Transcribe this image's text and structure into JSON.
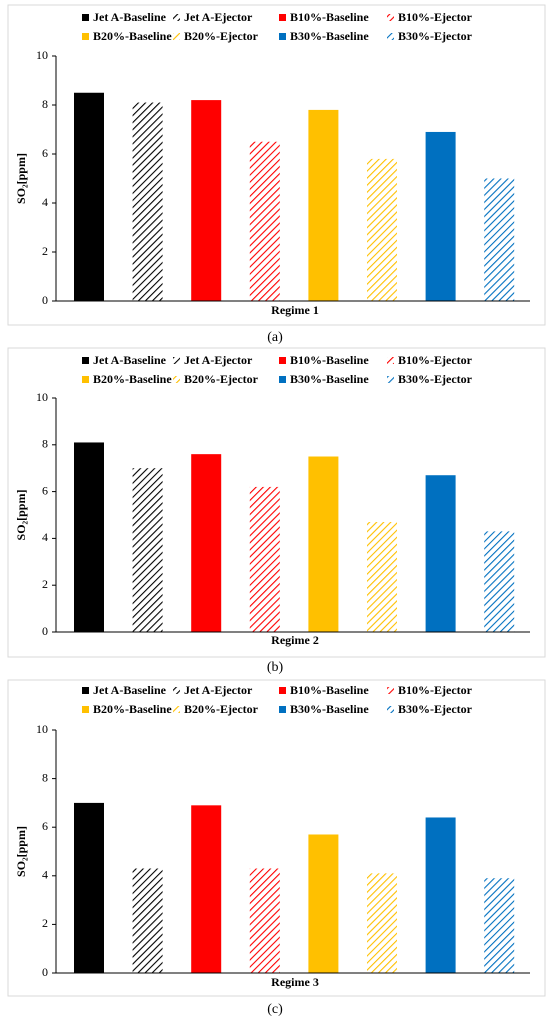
{
  "chart_data": [
    {
      "type": "bar",
      "ylabel": "SO₂[ppm]",
      "xlabel": "Regime 1",
      "caption": "(a)",
      "ylim": [
        0,
        10
      ],
      "yticks": [
        0,
        2,
        4,
        6,
        8,
        10
      ],
      "series": [
        {
          "name": "Jet A-Baseline",
          "color": "#000000",
          "pattern": "solid",
          "values": [
            8.5
          ]
        },
        {
          "name": "Jet A-Ejector",
          "color": "#000000",
          "pattern": "hatch",
          "values": [
            8.1
          ]
        },
        {
          "name": "B10%-Baseline",
          "color": "#ff0000",
          "pattern": "solid",
          "values": [
            8.2
          ]
        },
        {
          "name": "B10%-Ejector",
          "color": "#ff0000",
          "pattern": "hatch",
          "values": [
            6.5
          ]
        },
        {
          "name": "B20%-Baseline",
          "color": "#ffc000",
          "pattern": "solid",
          "values": [
            7.8
          ]
        },
        {
          "name": "B20%-Ejector",
          "color": "#ffc000",
          "pattern": "hatch",
          "values": [
            5.8
          ]
        },
        {
          "name": "B30%-Baseline",
          "color": "#0070c0",
          "pattern": "solid",
          "values": [
            6.9
          ]
        },
        {
          "name": "B30%-Ejector",
          "color": "#0070c0",
          "pattern": "hatch",
          "values": [
            5.0
          ]
        }
      ]
    },
    {
      "type": "bar",
      "ylabel": "SO₂[ppm]",
      "xlabel": "Regime 2",
      "caption": "(b)",
      "ylim": [
        0,
        10
      ],
      "yticks": [
        0,
        2,
        4,
        6,
        8,
        10
      ],
      "series": [
        {
          "name": "Jet A-Baseline",
          "color": "#000000",
          "pattern": "solid",
          "values": [
            8.1
          ]
        },
        {
          "name": "Jet A-Ejector",
          "color": "#000000",
          "pattern": "hatch",
          "values": [
            7.0
          ]
        },
        {
          "name": "B10%-Baseline",
          "color": "#ff0000",
          "pattern": "solid",
          "values": [
            7.6
          ]
        },
        {
          "name": "B10%-Ejector",
          "color": "#ff0000",
          "pattern": "hatch",
          "values": [
            6.2
          ]
        },
        {
          "name": "B20%-Baseline",
          "color": "#ffc000",
          "pattern": "solid",
          "values": [
            7.5
          ]
        },
        {
          "name": "B20%-Ejector",
          "color": "#ffc000",
          "pattern": "hatch",
          "values": [
            4.7
          ]
        },
        {
          "name": "B30%-Baseline",
          "color": "#0070c0",
          "pattern": "solid",
          "values": [
            6.7
          ]
        },
        {
          "name": "B30%-Ejector",
          "color": "#0070c0",
          "pattern": "hatch",
          "values": [
            4.3
          ]
        }
      ]
    },
    {
      "type": "bar",
      "ylabel": "SO₂[ppm]",
      "xlabel": "Regime 3",
      "caption": "(c)",
      "ylim": [
        0,
        10
      ],
      "yticks": [
        0,
        2,
        4,
        6,
        8,
        10
      ],
      "series": [
        {
          "name": "Jet A-Baseline",
          "color": "#000000",
          "pattern": "solid",
          "values": [
            7.0
          ]
        },
        {
          "name": "Jet A-Ejector",
          "color": "#000000",
          "pattern": "hatch",
          "values": [
            4.3
          ]
        },
        {
          "name": "B10%-Baseline",
          "color": "#ff0000",
          "pattern": "solid",
          "values": [
            6.9
          ]
        },
        {
          "name": "B10%-Ejector",
          "color": "#ff0000",
          "pattern": "hatch",
          "values": [
            4.3
          ]
        },
        {
          "name": "B20%-Baseline",
          "color": "#ffc000",
          "pattern": "solid",
          "values": [
            5.7
          ]
        },
        {
          "name": "B20%-Ejector",
          "color": "#ffc000",
          "pattern": "hatch",
          "values": [
            4.1
          ]
        },
        {
          "name": "B30%-Baseline",
          "color": "#0070c0",
          "pattern": "solid",
          "values": [
            6.4
          ]
        },
        {
          "name": "B30%-Ejector",
          "color": "#0070c0",
          "pattern": "hatch",
          "values": [
            3.9
          ]
        }
      ]
    }
  ]
}
